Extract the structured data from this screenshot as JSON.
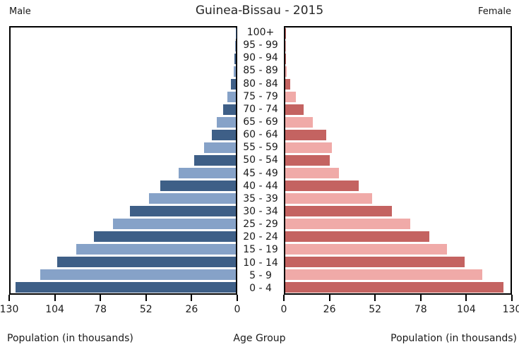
{
  "header": {
    "male_label": "Male",
    "title": "Guinea-Bissau - 2015",
    "female_label": "Female"
  },
  "footer": {
    "left_axis_label": "Population (in thousands)",
    "center_label": "Age Group",
    "right_axis_label": "Population (in thousands)"
  },
  "colors": {
    "male_dark": "#3e5f87",
    "male_light": "#86a2c8",
    "female_dark": "#c46361",
    "female_light": "#f0aaa8",
    "axis": "#000000"
  },
  "chart_data": {
    "type": "bar",
    "subtype": "population-pyramid",
    "title": "Guinea-Bissau - 2015",
    "xlabel": "Population (in thousands)",
    "center_axis_label": "Age Group",
    "xlim": [
      0,
      130
    ],
    "grid": false,
    "categories": [
      "100+",
      "95 - 99",
      "90 - 94",
      "85 - 89",
      "80 - 84",
      "75 - 79",
      "70 - 74",
      "65 - 69",
      "60 - 64",
      "55 - 59",
      "50 - 54",
      "45 - 49",
      "40 - 44",
      "35 - 39",
      "30 - 34",
      "25 - 29",
      "20 - 24",
      "15 - 19",
      "10 - 14",
      "5 - 9",
      "0 - 4"
    ],
    "series": [
      {
        "name": "Male",
        "values": [
          0.1,
          0.3,
          0.7,
          1.2,
          3,
          5,
          7.5,
          11,
          14,
          18.5,
          24,
          33,
          43.5,
          50,
          61,
          71,
          82,
          92,
          103,
          113,
          127
        ]
      },
      {
        "name": "Female",
        "values": [
          0.1,
          0.3,
          0.6,
          1,
          3,
          6,
          10.5,
          16,
          23.5,
          27,
          25.5,
          31,
          42.5,
          50,
          61.5,
          72,
          83,
          93.5,
          103.5,
          113.5,
          126
        ]
      }
    ],
    "x_ticks_male": [
      130,
      104,
      78,
      52,
      26,
      0
    ],
    "x_ticks_female": [
      0,
      26,
      52,
      78,
      104,
      130
    ]
  }
}
